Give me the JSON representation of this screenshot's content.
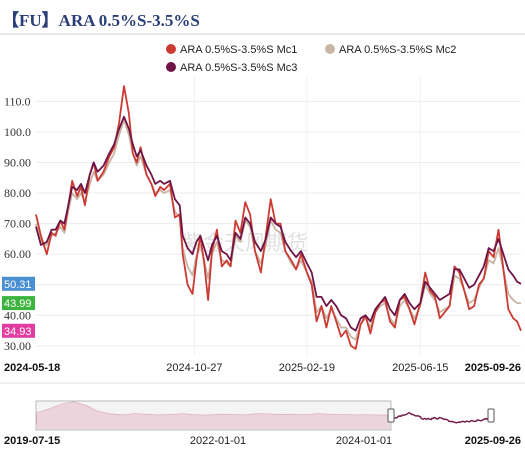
{
  "title": "【FU】ARA 0.5%S-3.5%S",
  "watermark": "紫金天风期货",
  "chart_data": {
    "type": "line",
    "title": "【FU】ARA 0.5%S-3.5%S",
    "x_range": [
      "2024-05-18",
      "2025-09-26"
    ],
    "x_tick_labels": [
      "2024-05-18",
      "2024-10-27",
      "2025-02-19",
      "2025-06-15",
      "2025-09-26"
    ],
    "ylim": [
      27,
      117
    ],
    "y_tick_labels": [
      "30.00",
      "40.00",
      "50.00",
      "60.00",
      "70.00",
      "80.00",
      "90.00",
      "100.0",
      "110.0"
    ],
    "grid": true,
    "legend_position": "top",
    "series": [
      {
        "name": "ARA 0.5%S-3.5%S Mc1",
        "color": "#cc3b33",
        "last_value": "34.93",
        "x": [
          "2024-05-18",
          "2024-05-23",
          "2024-05-29",
          "2024-06-03",
          "2024-06-07",
          "2024-06-12",
          "2024-06-16",
          "2024-06-20",
          "2024-06-24",
          "2024-06-29",
          "2024-07-03",
          "2024-07-07",
          "2024-07-12",
          "2024-07-16",
          "2024-07-20",
          "2024-07-26",
          "2024-08-01",
          "2024-08-06",
          "2024-08-11",
          "2024-08-16",
          "2024-08-21",
          "2024-08-25",
          "2024-08-29",
          "2024-09-02",
          "2024-09-08",
          "2024-09-13",
          "2024-09-17",
          "2024-09-22",
          "2024-09-26",
          "2024-10-02",
          "2024-10-07",
          "2024-10-12",
          "2024-10-15",
          "2024-10-20",
          "2024-10-25",
          "2024-10-29",
          "2024-11-02",
          "2024-11-06",
          "2024-11-10",
          "2024-11-14",
          "2024-11-19",
          "2024-11-24",
          "2024-11-29",
          "2024-12-03",
          "2024-12-08",
          "2024-12-13",
          "2024-12-18",
          "2024-12-23",
          "2024-12-28",
          "2025-01-03",
          "2025-01-08",
          "2025-01-13",
          "2025-01-18",
          "2025-01-23",
          "2025-01-28",
          "2025-02-03",
          "2025-02-08",
          "2025-02-13",
          "2025-02-19",
          "2025-02-24",
          "2025-03-01",
          "2025-03-06",
          "2025-03-11",
          "2025-03-16",
          "2025-03-21",
          "2025-03-26",
          "2025-03-31",
          "2025-04-05",
          "2025-04-10",
          "2025-04-15",
          "2025-04-20",
          "2025-04-25",
          "2025-04-30",
          "2025-05-05",
          "2025-05-10",
          "2025-05-15",
          "2025-05-20",
          "2025-05-25",
          "2025-05-30",
          "2025-06-04",
          "2025-06-09",
          "2025-06-15",
          "2025-06-20",
          "2025-06-25",
          "2025-06-30",
          "2025-07-05",
          "2025-07-10",
          "2025-07-15",
          "2025-07-20",
          "2025-07-25",
          "2025-07-30",
          "2025-08-04",
          "2025-08-09",
          "2025-08-14",
          "2025-08-19",
          "2025-08-24",
          "2025-08-29",
          "2025-09-03",
          "2025-09-08",
          "2025-09-13",
          "2025-09-18",
          "2025-09-22",
          "2025-09-26"
        ],
        "values": [
          73,
          66,
          60,
          67,
          66,
          71,
          68,
          76,
          84,
          79,
          82,
          76,
          86,
          90,
          84,
          87,
          92,
          95,
          103,
          115,
          106,
          93,
          90,
          95,
          86,
          83,
          79,
          82,
          81,
          83,
          72,
          73,
          60,
          50,
          47,
          58,
          66,
          57,
          45,
          61,
          68,
          56,
          58,
          56,
          71,
          67,
          77,
          73,
          61,
          54,
          66,
          78,
          70,
          70,
          61,
          58,
          55,
          60,
          54,
          50,
          38,
          43,
          36,
          43,
          38,
          33,
          35,
          30,
          29,
          37,
          40,
          34,
          41,
          44,
          45,
          38,
          36,
          45,
          46,
          42,
          37,
          44,
          54,
          48,
          46,
          39,
          41,
          43,
          56,
          54,
          48,
          42,
          43,
          50,
          52,
          61,
          59,
          68,
          55,
          42,
          39,
          38,
          34.93
        ]
      },
      {
        "name": "ARA 0.5%S-3.5%S Mc2",
        "color": "#c8b5a4",
        "last_value": "43.99",
        "x": [
          "2024-05-18",
          "2024-05-23",
          "2024-05-29",
          "2024-06-03",
          "2024-06-07",
          "2024-06-12",
          "2024-06-16",
          "2024-06-20",
          "2024-06-24",
          "2024-06-29",
          "2024-07-03",
          "2024-07-07",
          "2024-07-12",
          "2024-07-16",
          "2024-07-20",
          "2024-07-26",
          "2024-08-01",
          "2024-08-06",
          "2024-08-11",
          "2024-08-16",
          "2024-08-21",
          "2024-08-25",
          "2024-08-29",
          "2024-09-02",
          "2024-09-08",
          "2024-09-13",
          "2024-09-17",
          "2024-09-22",
          "2024-09-26",
          "2024-10-02",
          "2024-10-07",
          "2024-10-12",
          "2024-10-15",
          "2024-10-20",
          "2024-10-25",
          "2024-10-29",
          "2024-11-02",
          "2024-11-06",
          "2024-11-10",
          "2024-11-14",
          "2024-11-19",
          "2024-11-24",
          "2024-11-29",
          "2024-12-03",
          "2024-12-08",
          "2024-12-13",
          "2024-12-18",
          "2024-12-23",
          "2024-12-28",
          "2025-01-03",
          "2025-01-08",
          "2025-01-13",
          "2025-01-18",
          "2025-01-23",
          "2025-01-28",
          "2025-02-03",
          "2025-02-08",
          "2025-02-13",
          "2025-02-19",
          "2025-02-24",
          "2025-03-01",
          "2025-03-06",
          "2025-03-11",
          "2025-03-16",
          "2025-03-21",
          "2025-03-26",
          "2025-03-31",
          "2025-04-05",
          "2025-04-10",
          "2025-04-15",
          "2025-04-20",
          "2025-04-25",
          "2025-04-30",
          "2025-05-05",
          "2025-05-10",
          "2025-05-15",
          "2025-05-20",
          "2025-05-25",
          "2025-05-30",
          "2025-06-04",
          "2025-06-09",
          "2025-06-15",
          "2025-06-20",
          "2025-06-25",
          "2025-06-30",
          "2025-07-05",
          "2025-07-10",
          "2025-07-15",
          "2025-07-20",
          "2025-07-25",
          "2025-07-30",
          "2025-08-04",
          "2025-08-09",
          "2025-08-14",
          "2025-08-19",
          "2025-08-24",
          "2025-08-29",
          "2025-09-03",
          "2025-09-08",
          "2025-09-13",
          "2025-09-18",
          "2025-09-22",
          "2025-09-26"
        ],
        "values": [
          70,
          64,
          63,
          66,
          67,
          69,
          67,
          74,
          80,
          78,
          80,
          77,
          83,
          87,
          84,
          86,
          90,
          93,
          99,
          104,
          99,
          93,
          89,
          92,
          86,
          83,
          80,
          81,
          80,
          81,
          74,
          72,
          62,
          56,
          53,
          59,
          63,
          58,
          52,
          60,
          64,
          58,
          57,
          56,
          66,
          64,
          71,
          69,
          61,
          57,
          63,
          71,
          68,
          67,
          61,
          57,
          55,
          58,
          54,
          51,
          41,
          43,
          39,
          42,
          39,
          36,
          36,
          33,
          32,
          37,
          39,
          36,
          41,
          43,
          44,
          39,
          37,
          43,
          45,
          42,
          39,
          43,
          50,
          47,
          45,
          41,
          42,
          43,
          53,
          52,
          48,
          44,
          45,
          49,
          52,
          58,
          57,
          62,
          55,
          47,
          45,
          44,
          43.99
        ]
      },
      {
        "name": "ARA 0.5%S-3.5%S Mc3",
        "color": "#6e1546",
        "last_value": "50.31",
        "x": [
          "2024-05-18",
          "2024-05-23",
          "2024-05-29",
          "2024-06-03",
          "2024-06-07",
          "2024-06-12",
          "2024-06-16",
          "2024-06-20",
          "2024-06-24",
          "2024-06-29",
          "2024-07-03",
          "2024-07-07",
          "2024-07-12",
          "2024-07-16",
          "2024-07-20",
          "2024-07-26",
          "2024-08-01",
          "2024-08-06",
          "2024-08-11",
          "2024-08-16",
          "2024-08-21",
          "2024-08-25",
          "2024-08-29",
          "2024-09-02",
          "2024-09-08",
          "2024-09-13",
          "2024-09-17",
          "2024-09-22",
          "2024-09-26",
          "2024-10-02",
          "2024-10-07",
          "2024-10-12",
          "2024-10-15",
          "2024-10-20",
          "2024-10-25",
          "2024-10-29",
          "2024-11-02",
          "2024-11-06",
          "2024-11-10",
          "2024-11-14",
          "2024-11-19",
          "2024-11-24",
          "2024-11-29",
          "2024-12-03",
          "2024-12-08",
          "2024-12-13",
          "2024-12-18",
          "2024-12-23",
          "2024-12-28",
          "2025-01-03",
          "2025-01-08",
          "2025-01-13",
          "2025-01-18",
          "2025-01-23",
          "2025-01-28",
          "2025-02-03",
          "2025-02-08",
          "2025-02-13",
          "2025-02-19",
          "2025-02-24",
          "2025-03-01",
          "2025-03-06",
          "2025-03-11",
          "2025-03-16",
          "2025-03-21",
          "2025-03-26",
          "2025-03-31",
          "2025-04-05",
          "2025-04-10",
          "2025-04-15",
          "2025-04-20",
          "2025-04-25",
          "2025-04-30",
          "2025-05-05",
          "2025-05-10",
          "2025-05-15",
          "2025-05-20",
          "2025-05-25",
          "2025-05-30",
          "2025-06-04",
          "2025-06-09",
          "2025-06-15",
          "2025-06-20",
          "2025-06-25",
          "2025-06-30",
          "2025-07-05",
          "2025-07-10",
          "2025-07-15",
          "2025-07-20",
          "2025-07-25",
          "2025-07-30",
          "2025-08-04",
          "2025-08-09",
          "2025-08-14",
          "2025-08-19",
          "2025-08-24",
          "2025-08-29",
          "2025-09-03",
          "2025-09-08",
          "2025-09-13",
          "2025-09-18",
          "2025-09-22",
          "2025-09-26"
        ],
        "values": [
          69,
          63,
          64,
          68,
          68,
          71,
          70,
          76,
          82,
          81,
          83,
          80,
          86,
          90,
          87,
          89,
          93,
          96,
          101,
          105,
          101,
          96,
          92,
          94,
          89,
          86,
          83,
          84,
          83,
          84,
          78,
          76,
          66,
          62,
          60,
          64,
          66,
          62,
          58,
          63,
          66,
          61,
          60,
          58,
          67,
          65,
          72,
          70,
          64,
          61,
          65,
          72,
          70,
          69,
          64,
          61,
          59,
          61,
          57,
          54,
          46,
          46,
          43,
          45,
          43,
          40,
          39,
          36,
          35,
          39,
          40,
          38,
          42,
          44,
          46,
          42,
          40,
          45,
          47,
          44,
          42,
          44,
          51,
          49,
          47,
          45,
          46,
          47,
          55,
          55,
          52,
          49,
          50,
          53,
          56,
          62,
          61,
          65,
          60,
          55,
          53,
          51,
          50.31
        ]
      }
    ]
  },
  "navigator": {
    "start_label": "2019-07-15",
    "mid_labels": [
      "2022-01-01",
      "2024-01-01"
    ],
    "end_label": "2025-09-26"
  }
}
